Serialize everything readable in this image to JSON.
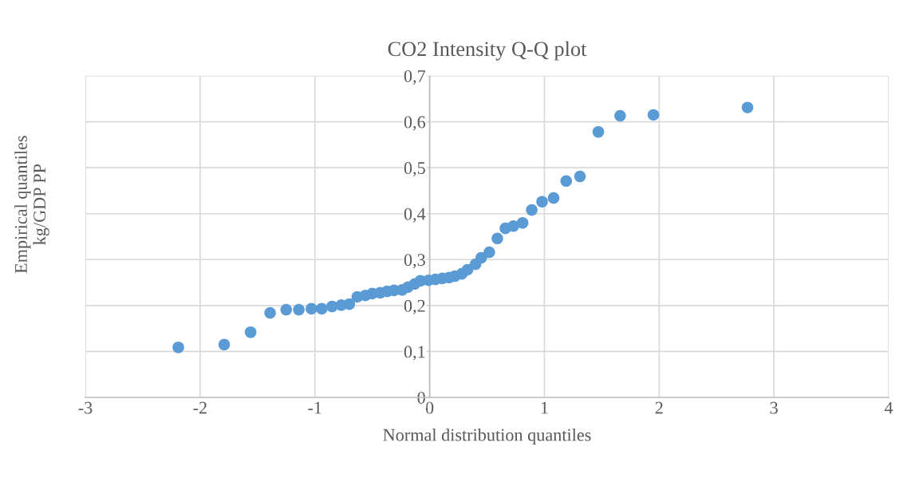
{
  "chart_data": {
    "type": "scatter",
    "title": "CO2 Intensity Q-Q plot",
    "xlabel": "Normal distribution quantiles",
    "ylabel": "Empirical quantiles\nkg/GDP PP",
    "x": [
      -2.19,
      -1.79,
      -1.56,
      -1.39,
      -1.25,
      -1.14,
      -1.03,
      -0.94,
      -0.85,
      -0.77,
      -0.7,
      -0.63,
      -0.56,
      -0.5,
      -0.43,
      -0.37,
      -0.31,
      -0.24,
      -0.19,
      -0.13,
      -0.08,
      -0.01,
      0.05,
      0.11,
      0.17,
      0.22,
      0.28,
      0.33,
      0.4,
      0.45,
      0.52,
      0.59,
      0.66,
      0.73,
      0.81,
      0.89,
      0.98,
      1.08,
      1.19,
      1.31,
      1.47,
      1.66,
      1.95,
      2.77
    ],
    "series": [
      {
        "color": "#5b9bd5",
        "values": [
          0.109,
          0.115,
          0.142,
          0.184,
          0.191,
          0.191,
          0.193,
          0.193,
          0.198,
          0.201,
          0.203,
          0.219,
          0.222,
          0.226,
          0.228,
          0.231,
          0.233,
          0.234,
          0.24,
          0.247,
          0.254,
          0.255,
          0.257,
          0.259,
          0.261,
          0.264,
          0.269,
          0.278,
          0.29,
          0.304,
          0.316,
          0.346,
          0.368,
          0.373,
          0.38,
          0.408,
          0.426,
          0.434,
          0.471,
          0.481,
          0.578,
          0.613,
          0.615,
          0.631
        ]
      }
    ],
    "xlim": [
      -3,
      4
    ],
    "xticks": [
      -3,
      -2,
      -1,
      0,
      1,
      2,
      3,
      4
    ],
    "ylim": [
      0,
      0.7
    ],
    "yticks": [
      0,
      {
        "value": 0.1,
        "label": "0,1"
      },
      {
        "value": 0.2,
        "label": "0,2"
      },
      {
        "value": 0.3,
        "label": "0,3"
      },
      {
        "value": 0.4,
        "label": "0,4"
      },
      {
        "value": 0.5,
        "label": "0,5"
      },
      {
        "value": 0.6,
        "label": "0,6"
      },
      {
        "value": 0.7,
        "label": "0,7"
      }
    ],
    "grid": true,
    "marker": "circle"
  }
}
